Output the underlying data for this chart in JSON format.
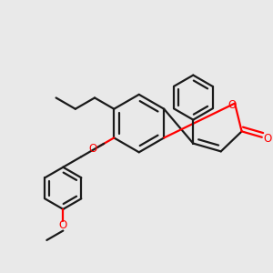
{
  "bg_color": "#e9e9e9",
  "bond_color": "#1a1a1a",
  "oxygen_color": "#ff0000",
  "lw": 1.6,
  "fig_size": [
    3.0,
    3.0
  ],
  "dpi": 100,
  "xlim": [
    0,
    10
  ],
  "ylim": [
    0,
    10
  ]
}
